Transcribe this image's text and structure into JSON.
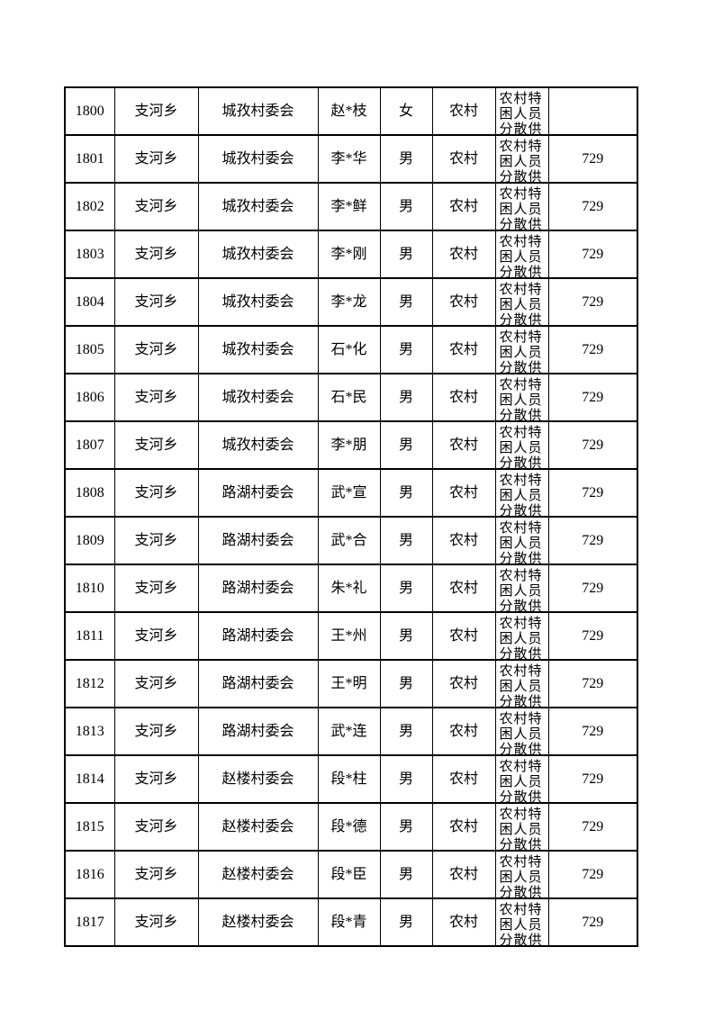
{
  "page": {
    "background_color": "#ffffff",
    "text_color": "#000000",
    "table_border_color": "#000000"
  },
  "table": {
    "rows": [
      [
        "1800",
        "支河乡",
        "城孜村委会",
        "赵*枝",
        "女",
        "农村",
        "农村特困人员分散供",
        ""
      ],
      [
        "1801",
        "支河乡",
        "城孜村委会",
        "李*华",
        "男",
        "农村",
        "农村特困人员分散供",
        "729"
      ],
      [
        "1802",
        "支河乡",
        "城孜村委会",
        "李*鲜",
        "男",
        "农村",
        "农村特困人员分散供",
        "729"
      ],
      [
        "1803",
        "支河乡",
        "城孜村委会",
        "李*刚",
        "男",
        "农村",
        "农村特困人员分散供",
        "729"
      ],
      [
        "1804",
        "支河乡",
        "城孜村委会",
        "李*龙",
        "男",
        "农村",
        "农村特困人员分散供",
        "729"
      ],
      [
        "1805",
        "支河乡",
        "城孜村委会",
        "石*化",
        "男",
        "农村",
        "农村特困人员分散供",
        "729"
      ],
      [
        "1806",
        "支河乡",
        "城孜村委会",
        "石*民",
        "男",
        "农村",
        "农村特困人员分散供",
        "729"
      ],
      [
        "1807",
        "支河乡",
        "城孜村委会",
        "李*朋",
        "男",
        "农村",
        "农村特困人员分散供",
        "729"
      ],
      [
        "1808",
        "支河乡",
        "路湖村委会",
        "武*宣",
        "男",
        "农村",
        "农村特困人员分散供",
        "729"
      ],
      [
        "1809",
        "支河乡",
        "路湖村委会",
        "武*合",
        "男",
        "农村",
        "农村特困人员分散供",
        "729"
      ],
      [
        "1810",
        "支河乡",
        "路湖村委会",
        "朱*礼",
        "男",
        "农村",
        "农村特困人员分散供",
        "729"
      ],
      [
        "1811",
        "支河乡",
        "路湖村委会",
        "王*州",
        "男",
        "农村",
        "农村特困人员分散供",
        "729"
      ],
      [
        "1812",
        "支河乡",
        "路湖村委会",
        "王*明",
        "男",
        "农村",
        "农村特困人员分散供",
        "729"
      ],
      [
        "1813",
        "支河乡",
        "路湖村委会",
        "武*连",
        "男",
        "农村",
        "农村特困人员分散供",
        "729"
      ],
      [
        "1814",
        "支河乡",
        "赵楼村委会",
        "段*柱",
        "男",
        "农村",
        "农村特困人员分散供",
        "729"
      ],
      [
        "1815",
        "支河乡",
        "赵楼村委会",
        "段*德",
        "男",
        "农村",
        "农村特困人员分散供",
        "729"
      ],
      [
        "1816",
        "支河乡",
        "赵楼村委会",
        "段*臣",
        "男",
        "农村",
        "农村特困人员分散供",
        "729"
      ],
      [
        "1817",
        "支河乡",
        "赵楼村委会",
        "段*青",
        "男",
        "农村",
        "农村特困人员分散供",
        "729"
      ]
    ]
  }
}
